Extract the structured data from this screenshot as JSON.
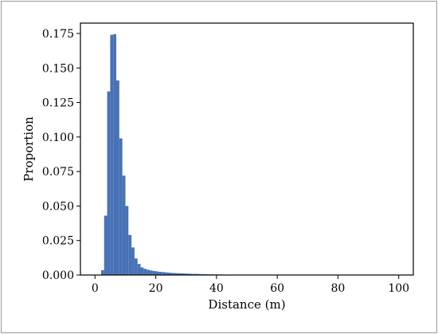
{
  "chart_data": {
    "type": "bar",
    "title": "",
    "xlabel": "Distance (m)",
    "ylabel": "Proportion",
    "xlim": [
      -4.8,
      104.8
    ],
    "ylim": [
      0,
      0.1825
    ],
    "x_ticks": [
      0,
      20,
      40,
      60,
      80,
      100
    ],
    "x_tick_labels": [
      "0",
      "20",
      "40",
      "60",
      "80",
      "100"
    ],
    "y_ticks": [
      0,
      0.025,
      0.05,
      0.075,
      0.1,
      0.125,
      0.15,
      0.175
    ],
    "y_tick_labels": [
      "0.000",
      "0.025",
      "0.050",
      "0.075",
      "0.100",
      "0.125",
      "0.150",
      "0.175"
    ],
    "grid": false,
    "legend": "none",
    "bar_color": "#4872b5",
    "bin_width": 1,
    "bin_start": 0,
    "values": [
      0.0,
      0.0003,
      0.0035,
      0.043,
      0.133,
      0.174,
      0.1745,
      0.141,
      0.099,
      0.072,
      0.05,
      0.029,
      0.02,
      0.012,
      0.008,
      0.0055,
      0.0045,
      0.0038,
      0.0033,
      0.0029,
      0.0026,
      0.0023,
      0.0021,
      0.0019,
      0.0017,
      0.0015,
      0.0014,
      0.0013,
      0.0012,
      0.0011,
      0.001,
      0.0009,
      0.0008,
      0.0008,
      0.0007,
      0.0006,
      0.0006,
      0.0005,
      0.0005,
      0.0004,
      0.0004,
      0.0004,
      0.0003,
      0.0003,
      0.0003,
      0.0003,
      0.0002,
      0.0002,
      0.0002,
      0.0002,
      0.0002,
      0.0001,
      0.0001,
      0.0001,
      0.0001,
      0.0001,
      0.0001,
      0.0001,
      0.0001,
      0.0001,
      0.0001,
      0.0001,
      0.0001,
      0.0001,
      0.0001,
      0.0,
      0.0,
      0.0,
      0.0,
      0.0,
      0.0,
      0.0,
      0.0,
      0.0,
      0.0,
      0.0,
      0.0,
      0.0,
      0.0,
      0.0,
      0.0,
      0.0,
      0.0,
      0.0,
      0.0,
      0.0,
      0.0,
      0.0,
      0.0,
      0.0,
      0.0,
      0.0,
      0.0,
      0.0,
      0.0,
      0.0,
      0.0,
      0.0,
      0.0,
      0.0
    ]
  }
}
